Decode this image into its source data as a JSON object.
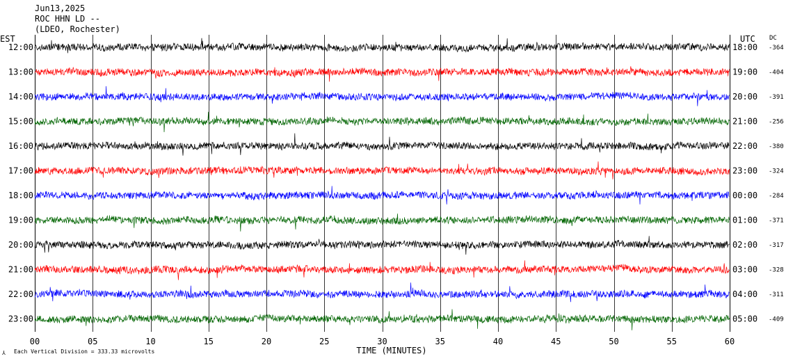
{
  "header": {
    "date": "Jun13,2025",
    "station": "ROC HHN LD --",
    "network": "(LDEO, Rochester)"
  },
  "labels": {
    "left_tz": "EST",
    "right_tz": "UTC",
    "dc_header": "DC",
    "footnote": "Each Vertical Division =  333.33 microvolts",
    "corner_mark": "⅄"
  },
  "chart_data": {
    "type": "line",
    "xlabel": "TIME (MINUTES)",
    "xlim": [
      0,
      60
    ],
    "xticks": [
      "00",
      "05",
      "10",
      "15",
      "20",
      "25",
      "30",
      "35",
      "40",
      "45",
      "50",
      "55",
      "60"
    ],
    "trace_colors": [
      "#000000",
      "#ff0000",
      "#0000ff",
      "#006400"
    ],
    "traces": [
      {
        "est": "12:00",
        "utc": "18:00",
        "dc": "-364"
      },
      {
        "est": "13:00",
        "utc": "19:00",
        "dc": "-404"
      },
      {
        "est": "14:00",
        "utc": "20:00",
        "dc": "-391"
      },
      {
        "est": "15:00",
        "utc": "21:00",
        "dc": "-256"
      },
      {
        "est": "16:00",
        "utc": "22:00",
        "dc": "-380"
      },
      {
        "est": "17:00",
        "utc": "23:00",
        "dc": "-324"
      },
      {
        "est": "18:00",
        "utc": "00:00",
        "dc": "-284"
      },
      {
        "est": "19:00",
        "utc": "01:00",
        "dc": "-371"
      },
      {
        "est": "20:00",
        "utc": "02:00",
        "dc": "-317"
      },
      {
        "est": "21:00",
        "utc": "03:00",
        "dc": "-328"
      },
      {
        "est": "22:00",
        "utc": "04:00",
        "dc": "-311"
      },
      {
        "est": "23:00",
        "utc": "05:00",
        "dc": "-409"
      }
    ]
  }
}
